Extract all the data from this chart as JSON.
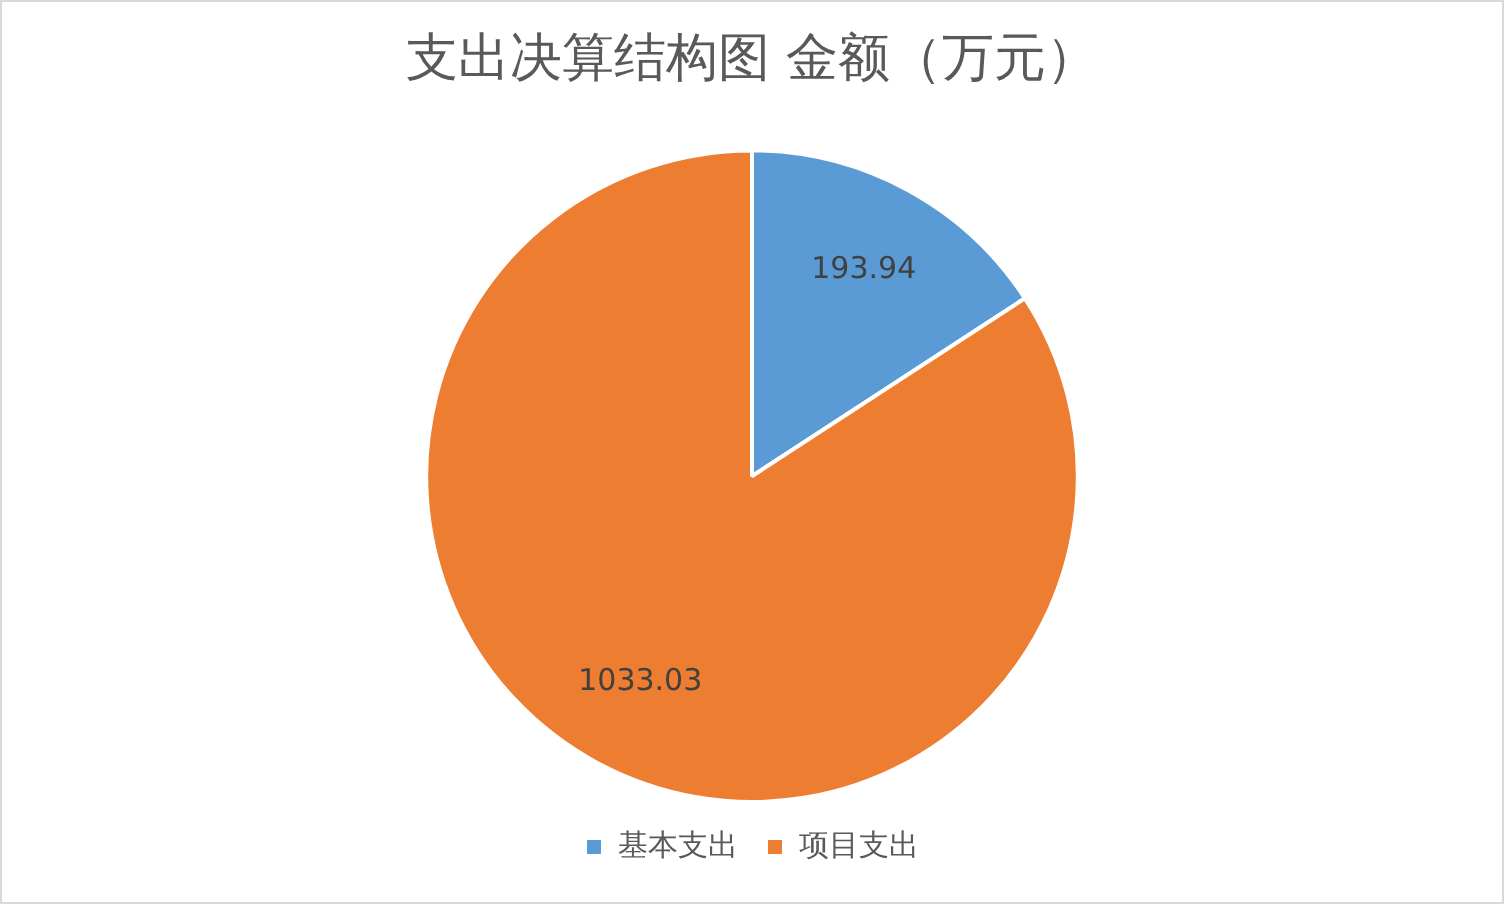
{
  "chart_data": {
    "type": "pie",
    "title": "支出决算结构图 金额（万元）",
    "categories": [
      "基本支出",
      "项目支出"
    ],
    "values": [
      193.94,
      1033.03
    ],
    "colors": [
      "#5b9bd5",
      "#ed7d31"
    ],
    "data_labels": true,
    "legend": "bottom"
  }
}
